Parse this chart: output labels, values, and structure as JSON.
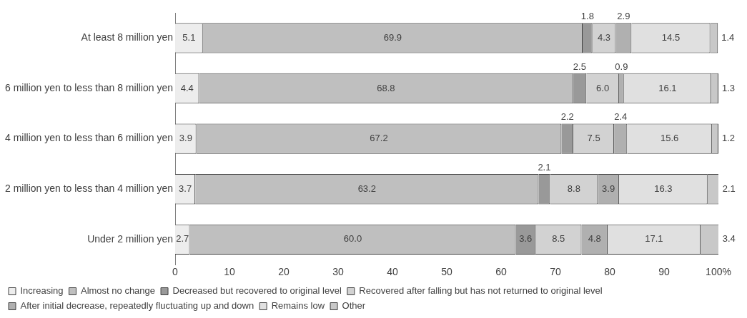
{
  "chart_data": {
    "type": "bar",
    "orientation": "horizontal",
    "stacked": true,
    "grid": false,
    "legend": "bottom",
    "categories": [
      "At least 8 million yen",
      "6 million yen to less than 8 million yen",
      "4 million yen to less than 6 million yen",
      "2 million yen to less than 4 million yen",
      "Under 2 million yen"
    ],
    "xlim": [
      0,
      100
    ],
    "xticks": [
      0,
      10,
      20,
      30,
      40,
      50,
      60,
      70,
      80,
      90,
      {
        "value": 100,
        "label": "100%"
      }
    ],
    "series": [
      {
        "name": "Increasing",
        "color": "#ededed",
        "values": [
          5.1,
          4.4,
          3.9,
          3.7,
          2.7
        ],
        "value_labels": [
          "5.1",
          "4.4",
          "3.9",
          "3.7",
          "2.7"
        ]
      },
      {
        "name": "Almost no change",
        "color": "#bfbfbf",
        "values": [
          69.9,
          68.8,
          67.2,
          63.2,
          60.0
        ],
        "value_labels": [
          "69.9",
          "68.8",
          "67.2",
          "63.2",
          "60.0"
        ]
      },
      {
        "name": "Decreased but recovered to original level",
        "color": "#999999",
        "values": [
          1.8,
          2.5,
          2.2,
          2.1,
          3.6
        ],
        "value_labels": [
          "1.8",
          "2.5",
          "2.2",
          "2.1",
          "3.6"
        ]
      },
      {
        "name": "Recovered after falling but has not returned to original level",
        "color": "#d2d2d2",
        "values": [
          4.3,
          6.0,
          7.5,
          8.8,
          8.5
        ],
        "value_labels": [
          "4.3",
          "6.0",
          "7.5",
          "8.8",
          "8.5"
        ]
      },
      {
        "name": "After initial decrease, repeatedly fluctuating up and down",
        "color": "#b0b0b0",
        "values": [
          2.9,
          0.9,
          2.4,
          3.9,
          4.8
        ],
        "value_labels": [
          "2.9",
          "0.9",
          "2.4",
          "3.9",
          "4.8"
        ]
      },
      {
        "name": "Remains low",
        "color": "#e0e0e0",
        "values": [
          14.5,
          16.1,
          15.6,
          16.3,
          17.1
        ],
        "value_labels": [
          "14.5",
          "16.1",
          "15.6",
          "16.3",
          "17.1"
        ]
      },
      {
        "name": "Other",
        "color": "#c8c8c8",
        "values": [
          1.4,
          1.3,
          1.2,
          2.1,
          3.4
        ],
        "value_labels": [
          "1.4",
          "1.3",
          "1.2",
          "2.1",
          "3.4"
        ]
      }
    ]
  }
}
